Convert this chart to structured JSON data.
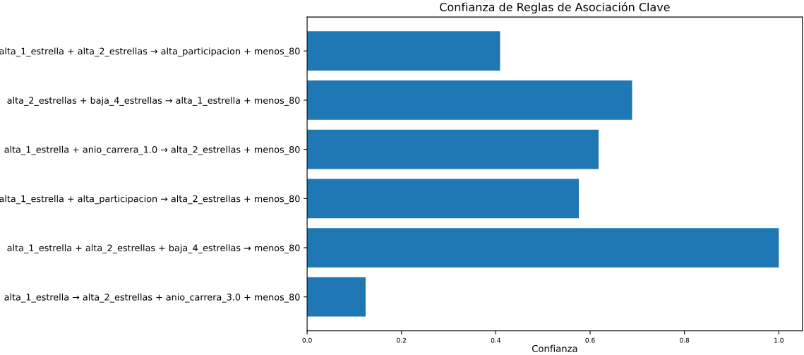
{
  "chart_data": {
    "type": "bar",
    "orientation": "horizontal",
    "title": "Confianza de Reglas de Asociación Clave",
    "xlabel": "Confianza",
    "categories": [
      "alta_1_estrella + alta_2_estrellas → alta_participacion + menos_80",
      "alta_2_estrellas + baja_4_estrellas → alta_1_estrella + menos_80",
      "alta_1_estrella + anio_carrera_1.0 → alta_2_estrellas + menos_80",
      "alta_1_estrella + alta_participacion → alta_2_estrellas + menos_80",
      "alta_1_estrella + alta_2_estrellas + baja_4_estrellas → menos_80",
      "alta_1_estrella → alta_2_estrellas + anio_carrera_3.0 + menos_80"
    ],
    "values": [
      0.409,
      0.689,
      0.618,
      0.576,
      1.0,
      0.124
    ],
    "color": "#1f77b4",
    "xlim": [
      0,
      1.05
    ],
    "xticks": [
      {
        "value": 0,
        "label": "0.0"
      },
      0.2,
      0.4,
      0.6,
      0.8,
      {
        "value": 1,
        "label": "1.0"
      }
    ],
    "grid": false,
    "legend": false
  }
}
